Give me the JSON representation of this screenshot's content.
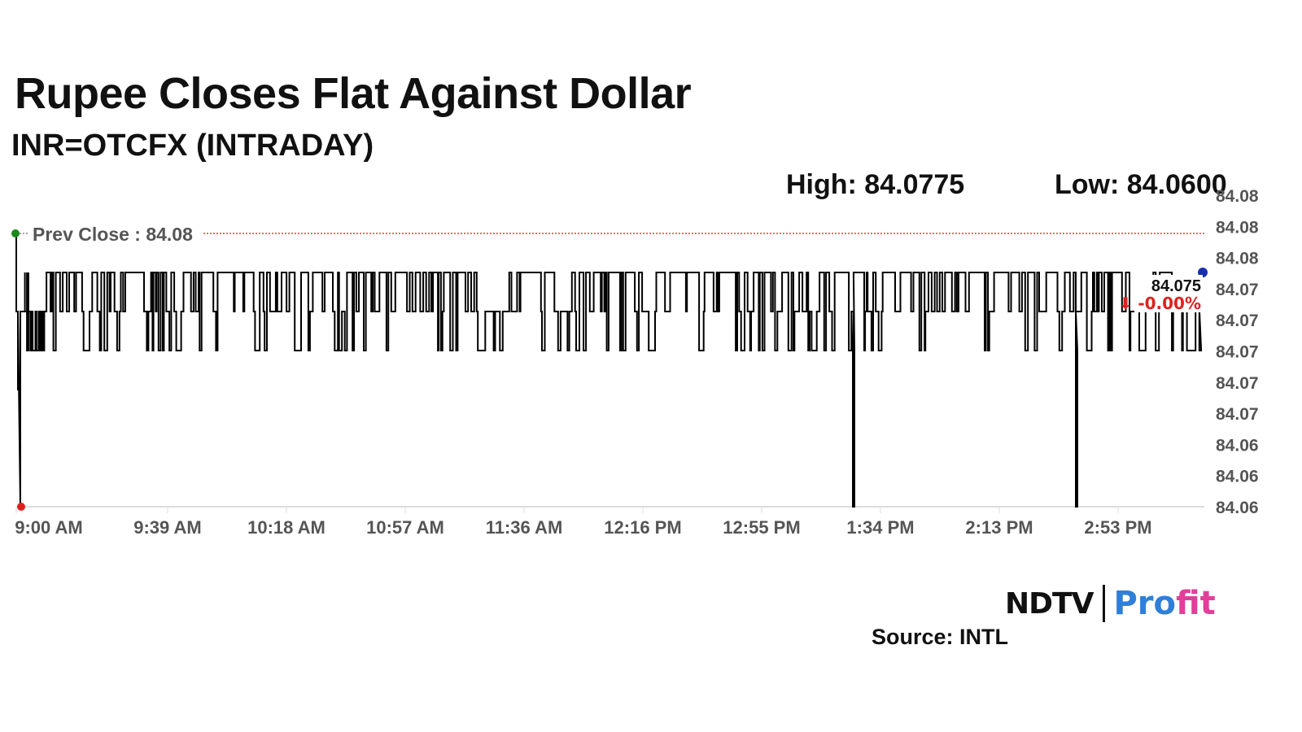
{
  "header": {
    "title": "Rupee Closes Flat Against Dollar",
    "subtitle": "INR=OTCFX (INTRADAY)"
  },
  "stats": {
    "high": "High: 84.0775",
    "low": "Low: 84.0600"
  },
  "footer": {
    "logo_ndtv": "NDTV",
    "logo_profit_a": "Pro",
    "logo_profit_b": "fit",
    "source": "Source: INTL"
  },
  "colors": {
    "line": "#000000",
    "prev_close_line": "#e53935",
    "change_negative": "#e02020",
    "start_dot": "#1a8a1a",
    "low_dot": "#e02020",
    "end_dot": "#1a2fb0",
    "axis": "#dddddd",
    "tick_text": "#555555"
  },
  "chart_data": {
    "type": "line",
    "title": "Rupee Closes Flat Against Dollar",
    "subtitle": "INR=OTCFX (INTRADAY)",
    "xlabel": "",
    "ylabel": "",
    "x_tick_labels": [
      "9:00 AM",
      "9:39 AM",
      "10:18 AM",
      "10:57 AM",
      "11:36 AM",
      "12:16 PM",
      "12:55 PM",
      "1:34 PM",
      "2:13 PM",
      "2:53 PM"
    ],
    "y_tick_labels": [
      "84.08",
      "84.08",
      "84.08",
      "84.07",
      "84.07",
      "84.07",
      "84.07",
      "84.07",
      "84.06",
      "84.06",
      "84.06"
    ],
    "ylim": [
      84.06,
      84.08
    ],
    "prev_close": {
      "label": "Prev Close : 84.08",
      "value": 84.08
    },
    "last": {
      "value": "84.075",
      "change": "⬇ -0.00%"
    },
    "high": 84.0775,
    "low": 84.06,
    "series": [
      {
        "values_note": "",
        "points": [
          {
            "t": "9:00 AM",
            "v": 84.08
          },
          {
            "t": "9:01 AM",
            "v": 84.0725
          },
          {
            "t": "9:02 AM",
            "v": 84.06
          },
          {
            "t": "9:03 AM",
            "v": 84.0725
          },
          {
            "t": "9:10 AM",
            "v": 84.0725
          },
          {
            "t": "9:15 AM",
            "v": 84.075
          },
          {
            "t": "9:16 AM",
            "v": 84.07
          },
          {
            "t": "9:25 AM",
            "v": 84.0725
          },
          {
            "t": "9:39 AM",
            "v": 84.075
          },
          {
            "t": "10:18 AM",
            "v": 84.0725
          },
          {
            "t": "10:57 AM",
            "v": 84.075
          },
          {
            "t": "11:36 AM",
            "v": 84.0725
          },
          {
            "t": "12:16 PM",
            "v": 84.075
          },
          {
            "t": "12:55 PM",
            "v": 84.0725
          },
          {
            "t": "1:30 PM",
            "v": 84.07
          },
          {
            "t": "1:31 PM",
            "v": 84.06
          },
          {
            "t": "1:32 PM",
            "v": 84.0725
          },
          {
            "t": "2:13 PM",
            "v": 84.075
          },
          {
            "t": "2:38 PM",
            "v": 84.07
          },
          {
            "t": "2:39 PM",
            "v": 84.06
          },
          {
            "t": "2:40 PM",
            "v": 84.0725
          },
          {
            "t": "2:53 PM",
            "v": 84.075
          },
          {
            "t": "3:10 PM",
            "v": 84.0725
          },
          {
            "t": "3:15 PM",
            "v": 84.075
          }
        ]
      }
    ]
  }
}
